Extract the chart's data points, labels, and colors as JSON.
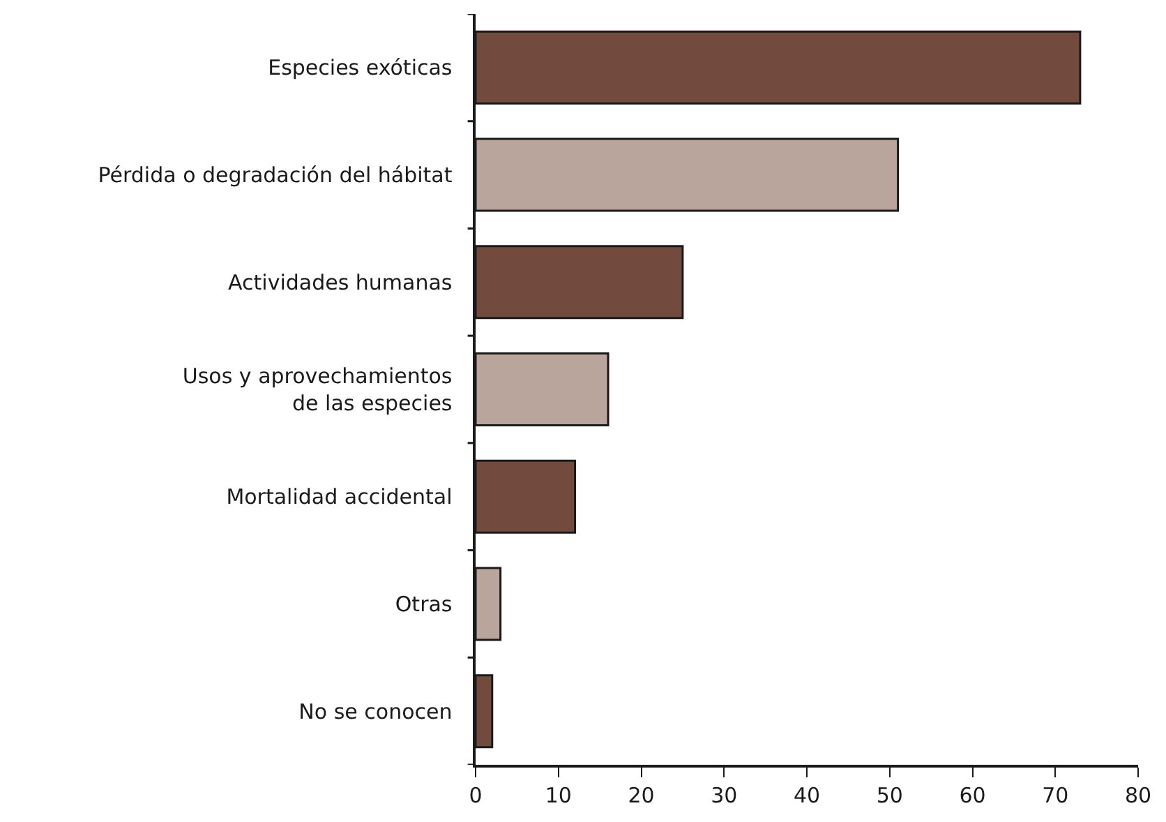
{
  "chart_data": {
    "type": "bar",
    "orientation": "horizontal",
    "categories": [
      "Especies exóticas",
      "Pérdida o degradación del hábitat",
      "Actividades humanas",
      "Usos y aprovechamientos\nde las especies",
      "Mortalidad accidental",
      "Otras",
      "No se conocen"
    ],
    "values": [
      73,
      51,
      25,
      16,
      12,
      3,
      2
    ],
    "colors": [
      "#724b3e",
      "#b9a59b",
      "#724b3e",
      "#b9a59b",
      "#724b3e",
      "#b9a59b",
      "#724b3e"
    ],
    "xlim": [
      0,
      80
    ],
    "xticks": [
      0,
      10,
      20,
      30,
      40,
      50,
      60,
      70,
      80
    ]
  }
}
